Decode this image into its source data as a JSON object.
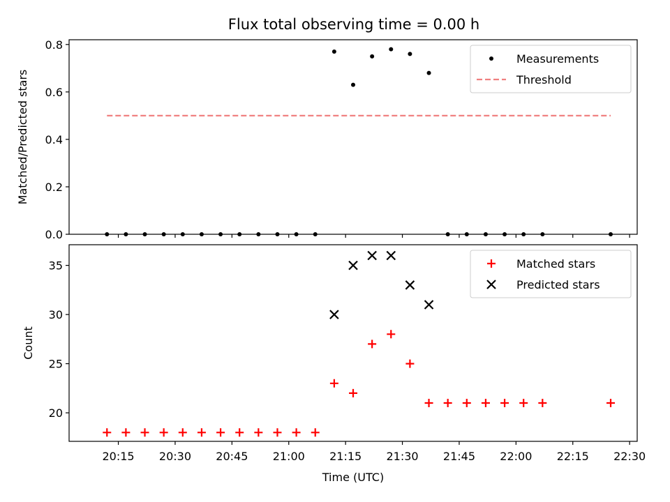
{
  "figure_title": "Flux total observing time = 0.00 h",
  "colors": {
    "measurement": "#000000",
    "threshold": "#f08080",
    "matched": "#ff0000",
    "predicted": "#000000",
    "axes": "#000000"
  },
  "chart_data": [
    {
      "type": "scatter",
      "title": "Flux total observing time = 0.00 h",
      "xlabel": "",
      "ylabel": "Matched/Predicted stars",
      "ylim": [
        0,
        0.82
      ],
      "yticks": [
        "0.0",
        "0.2",
        "0.4",
        "0.6",
        "0.8"
      ],
      "xlim": [
        "20:02",
        "22:32"
      ],
      "x_tick_marks": [
        "20:15",
        "20:30",
        "20:45",
        "21:00",
        "21:15",
        "21:30",
        "21:45",
        "22:00",
        "22:15",
        "22:30"
      ],
      "x_tick_labels_shown": false,
      "legend": "top-right",
      "series": [
        {
          "name": "Measurements",
          "marker": "dot",
          "x": [
            "20:12",
            "20:17",
            "20:22",
            "20:27",
            "20:32",
            "20:37",
            "20:42",
            "20:47",
            "20:52",
            "20:57",
            "21:02",
            "21:07",
            "21:12",
            "21:17",
            "21:22",
            "21:27",
            "21:32",
            "21:37",
            "21:42",
            "21:47",
            "21:52",
            "21:57",
            "22:02",
            "22:07",
            "22:25"
          ],
          "y": [
            0,
            0,
            0,
            0,
            0,
            0,
            0,
            0,
            0,
            0,
            0,
            0,
            0.77,
            0.63,
            0.75,
            0.78,
            0.76,
            0.68,
            0,
            0,
            0,
            0,
            0,
            0,
            0
          ]
        },
        {
          "name": "Threshold",
          "marker": "dashed-line",
          "x": [
            "20:12",
            "22:25"
          ],
          "y": [
            0.5,
            0.5
          ]
        }
      ]
    },
    {
      "type": "scatter",
      "title": "",
      "xlabel": "Time (UTC)",
      "ylabel": "Count",
      "ylim": [
        17.1,
        37.1
      ],
      "yticks": [
        "20",
        "25",
        "30",
        "35"
      ],
      "xlim": [
        "20:02",
        "22:32"
      ],
      "xticks": [
        "20:15",
        "20:30",
        "20:45",
        "21:00",
        "21:15",
        "21:30",
        "21:45",
        "22:00",
        "22:15",
        "22:30"
      ],
      "legend": "top-right",
      "series": [
        {
          "name": "Matched stars",
          "marker": "plus",
          "x": [
            "20:12",
            "20:17",
            "20:22",
            "20:27",
            "20:32",
            "20:37",
            "20:42",
            "20:47",
            "20:52",
            "20:57",
            "21:02",
            "21:07",
            "21:12",
            "21:17",
            "21:22",
            "21:27",
            "21:32",
            "21:37",
            "21:42",
            "21:47",
            "21:52",
            "21:57",
            "22:02",
            "22:07",
            "22:25"
          ],
          "y": [
            18,
            18,
            18,
            18,
            18,
            18,
            18,
            18,
            18,
            18,
            18,
            18,
            23,
            22,
            27,
            28,
            25,
            21,
            21,
            21,
            21,
            21,
            21,
            21,
            21
          ]
        },
        {
          "name": "Predicted stars",
          "marker": "cross",
          "x": [
            "21:12",
            "21:17",
            "21:22",
            "21:27",
            "21:32",
            "21:37"
          ],
          "y": [
            30,
            35,
            36,
            36,
            33,
            31
          ]
        }
      ]
    }
  ]
}
